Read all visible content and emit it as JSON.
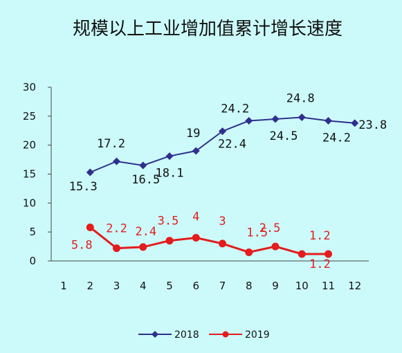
{
  "chart_data": {
    "type": "line",
    "title": "规模以上工业增加值累计增长速度",
    "categories": [
      "1",
      "2",
      "3",
      "4",
      "5",
      "6",
      "7",
      "8",
      "9",
      "10",
      "11",
      "12"
    ],
    "ylim": [
      0,
      30
    ],
    "yticks": [
      "0",
      "5",
      "10",
      "15",
      "20",
      "25",
      "30"
    ],
    "grid": false,
    "legend_position": "bottom",
    "series": [
      {
        "name": "2018",
        "color": "#2f2f8f",
        "marker": "diamond",
        "values": [
          null,
          15.3,
          17.2,
          16.5,
          18.1,
          19,
          22.4,
          24.2,
          24.5,
          24.8,
          24.2,
          23.8
        ],
        "labels": [
          null,
          "15.3",
          "17.2",
          "16.5",
          "18.1",
          "19",
          "22.4",
          "24.2",
          "24.5",
          "24.8",
          "24.2",
          "23.8"
        ]
      },
      {
        "name": "2019",
        "color": "#e31c1c",
        "marker": "circle",
        "values": [
          null,
          5.8,
          2.2,
          2.4,
          3.5,
          4,
          3,
          1.5,
          2.5,
          1.2,
          1.2,
          null
        ],
        "labels": [
          null,
          "5.8",
          "2.2",
          "2.4",
          "3.5",
          "4",
          "3",
          "1.5",
          "2.5",
          "1.2",
          "1.2",
          null
        ]
      }
    ]
  }
}
